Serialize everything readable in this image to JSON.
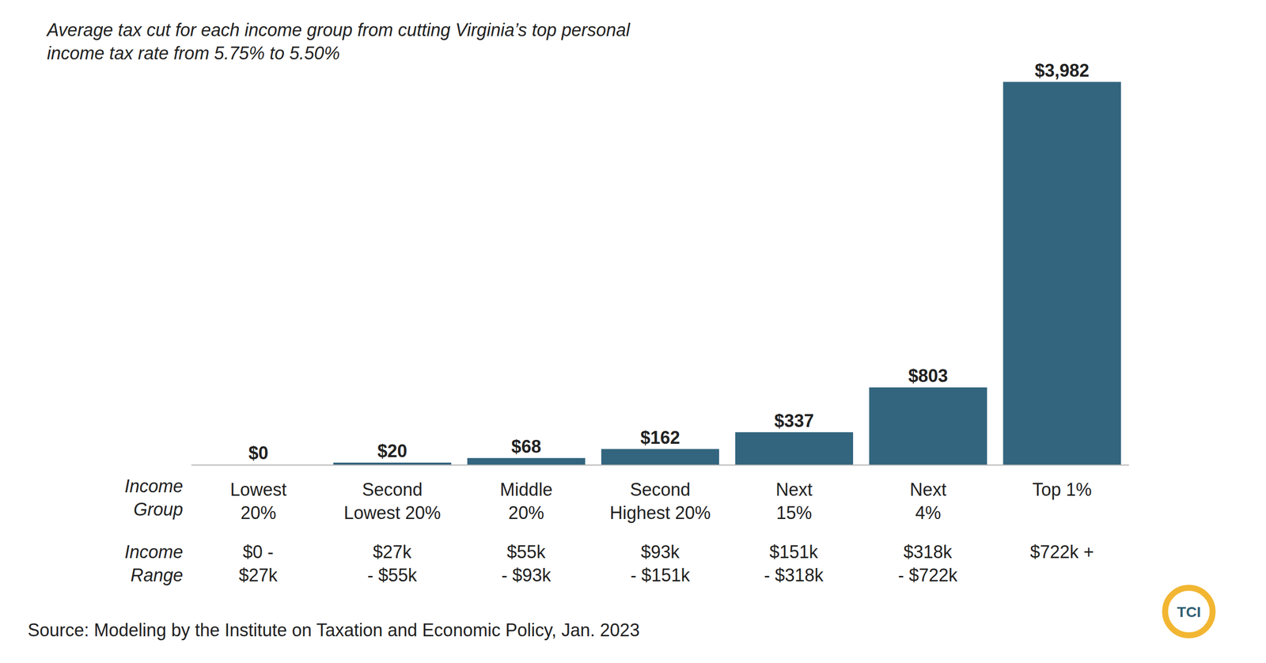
{
  "chart_data": {
    "type": "bar",
    "title": "Average tax cut for each income group from cutting Virginia’s top personal\nincome tax rate from 5.75% to 5.50%",
    "categories": [
      "Lowest\n20%",
      "Second\nLowest 20%",
      "Middle\n20%",
      "Second\nHighest 20%",
      "Next\n15%",
      "Next\n4%",
      "Top 1%"
    ],
    "values": [
      0,
      20,
      68,
      162,
      337,
      803,
      3982
    ],
    "value_labels": [
      "$0",
      "$20",
      "$68",
      "$162",
      "$337",
      "$803",
      "$3,982"
    ],
    "income_group_label": "Income\nGroup",
    "income_range_label": "Income\nRange",
    "income_ranges": [
      "$0 -\n$27k",
      "$27k\n- $55k",
      "$55k\n- $93k",
      "$93k\n- $151k",
      "$151k\n- $318k",
      "$318k\n- $722k",
      "$722k +"
    ],
    "source": "Source: Modeling by the Institute on Taxation and Economic Policy, Jan. 2023",
    "logo_text": "TCI",
    "color": "#33657f",
    "ylim": [
      0,
      4000
    ],
    "data_labels": true,
    "tick_labels": "x",
    "grid": false
  }
}
